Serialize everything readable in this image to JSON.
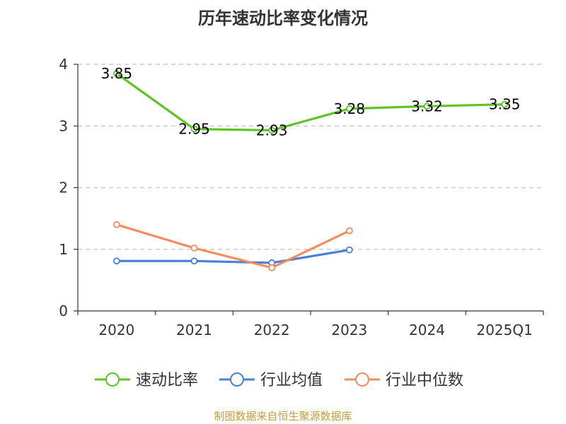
{
  "title": "历年速动比率变化情况",
  "source": "制图数据来自恒生聚源数据库",
  "chart_data": {
    "type": "line",
    "title": "历年速动比率变化情况",
    "categories": [
      "2020",
      "2021",
      "2022",
      "2023",
      "2024",
      "2025Q1"
    ],
    "ylim": [
      0,
      4
    ],
    "yticks": [
      "0",
      "1",
      "2",
      "3",
      "4"
    ],
    "grid": true,
    "legend_position": "bottom",
    "series": [
      {
        "name": "速动比率",
        "color": "#5cc424",
        "values": [
          3.85,
          2.95,
          2.93,
          3.28,
          3.32,
          3.35
        ],
        "labels": [
          "3.85",
          "2.95",
          "2.93",
          "3.28",
          "3.32",
          "3.35"
        ]
      },
      {
        "name": "行业均值",
        "color": "#4a7fdc",
        "values": [
          0.81,
          0.81,
          0.78,
          0.99,
          null,
          null
        ]
      },
      {
        "name": "行业中位数",
        "color": "#f58c5a",
        "values": [
          1.4,
          1.02,
          0.7,
          1.3,
          null,
          null
        ]
      }
    ]
  }
}
